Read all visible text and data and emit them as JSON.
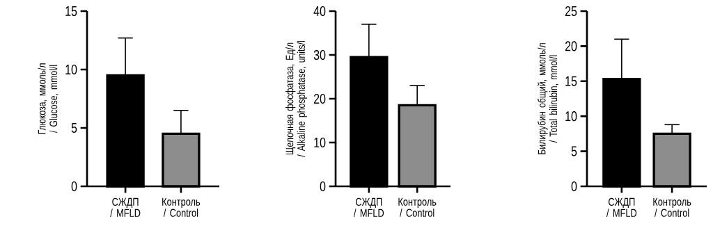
{
  "chart_data": [
    {
      "type": "bar",
      "ylabel": "Глюкоза, ммоль/л / Glucose, mmol/l",
      "categories": [
        "СЖДП / MFLD",
        "Контроль / Control"
      ],
      "values": [
        9.5,
        4.5
      ],
      "colors": [
        "#000000",
        "#8c8c8c"
      ],
      "errors": [
        [
          9.5,
          12.7
        ],
        [
          4.5,
          6.5
        ]
      ],
      "ylim": [
        0,
        15
      ],
      "yticks": [
        0,
        5,
        10,
        15
      ]
    },
    {
      "type": "bar",
      "ylabel": "Щелочная фосфатаза, Ед/л / Alkaline phosphatase, units/l",
      "categories": [
        "СЖДП / MFLD",
        "Контроль / Control"
      ],
      "values": [
        29.5,
        18.5
      ],
      "colors": [
        "#000000",
        "#8c8c8c"
      ],
      "errors": [
        [
          29.5,
          37
        ],
        [
          18.5,
          23
        ]
      ],
      "ylim": [
        0,
        40
      ],
      "yticks": [
        0,
        10,
        20,
        30,
        40
      ]
    },
    {
      "type": "bar",
      "ylabel": "Билирубин общий, ммоль/л / Total bilirubin, mmol/l",
      "categories": [
        "СЖДП / MFLD",
        "Контроль / Control"
      ],
      "values": [
        15.3,
        7.5
      ],
      "colors": [
        "#000000",
        "#8c8c8c"
      ],
      "errors": [
        [
          15.3,
          21
        ],
        [
          7.5,
          8.8
        ]
      ],
      "ylim": [
        0,
        25
      ],
      "yticks": [
        0,
        5,
        10,
        15,
        20,
        25
      ]
    }
  ]
}
